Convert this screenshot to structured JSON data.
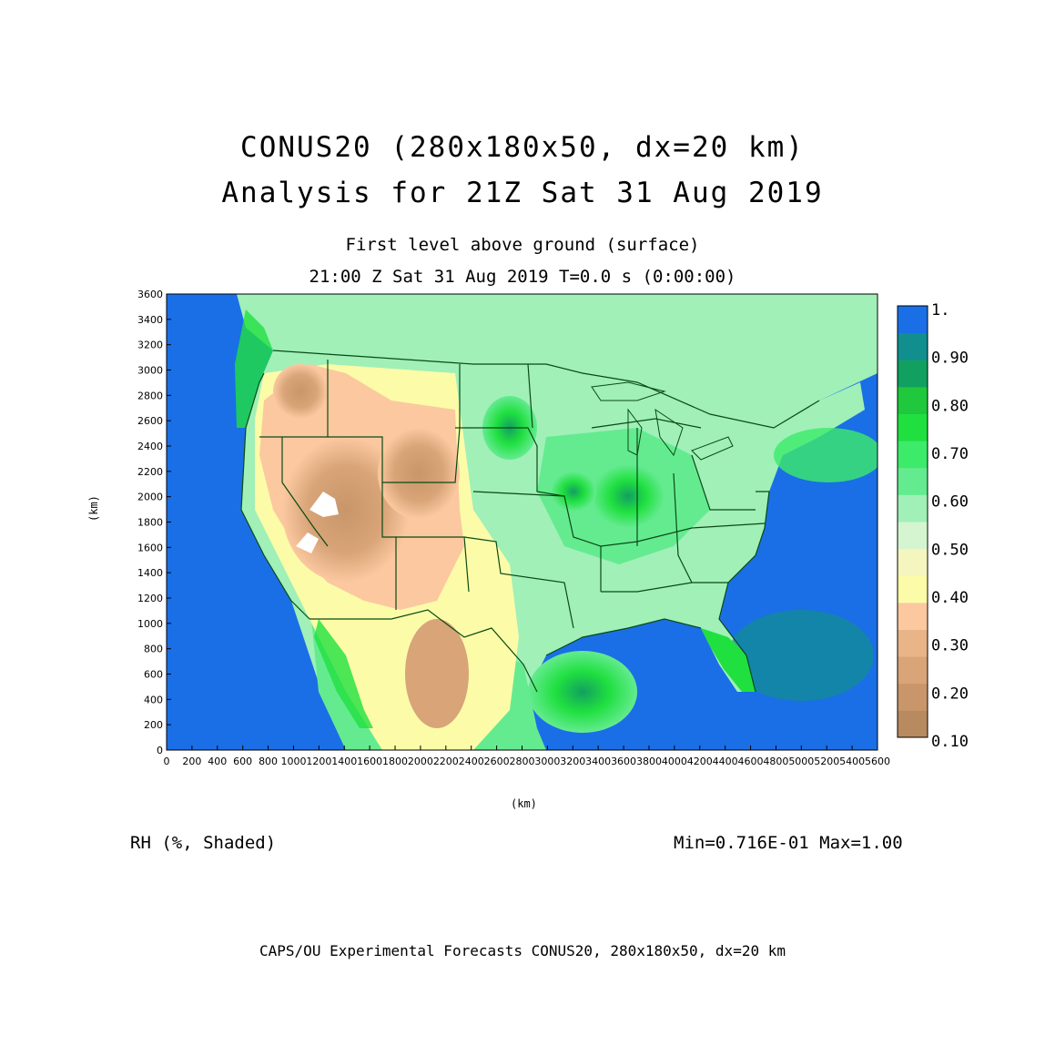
{
  "titles": {
    "main_1": "CONUS20 (280x180x50, dx=20 km)",
    "main_2": "Analysis for 21Z Sat 31 Aug 2019",
    "sub_1": "First level above ground (surface)",
    "sub_2": "21:00 Z Sat 31 Aug 2019   T=0.0 s (0:00:00)"
  },
  "axes": {
    "x_unit": "(km)",
    "y_unit": "(km)",
    "x_range": [
      0,
      5600
    ],
    "y_range": [
      0,
      3600
    ],
    "x_ticks": [
      "0",
      "200",
      "400",
      "600",
      "800",
      "1000",
      "1200",
      "1400",
      "1600",
      "1800",
      "2000",
      "2200",
      "2400",
      "2600",
      "2800",
      "3000",
      "3200",
      "3400",
      "3600",
      "3800",
      "4000",
      "4200",
      "4400",
      "4600",
      "4800",
      "5000",
      "5200",
      "5400",
      "5600"
    ],
    "y_ticks": [
      "0",
      "200",
      "400",
      "600",
      "800",
      "1000",
      "1200",
      "1400",
      "1600",
      "1800",
      "2000",
      "2200",
      "2400",
      "2600",
      "2800",
      "3000",
      "3200",
      "3400",
      "3600"
    ]
  },
  "variable_label": "RH (%, Shaded)",
  "min_max": "Min=0.716E-01 Max=1.00",
  "footer": "CAPS/OU Experimental Forecasts  CONUS20, 280x180x50, dx=20 km",
  "legend": {
    "labels": [
      "1.",
      "0.90",
      "0.80",
      "0.70",
      "0.60",
      "0.50",
      "0.40",
      "0.30",
      "0.20",
      "0.10"
    ],
    "colors": [
      "#1a6fe6",
      "#118f8f",
      "#12a060",
      "#1fc83c",
      "#20e040",
      "#3ceb6a",
      "#64eb90",
      "#a0f0b8",
      "#d4f5d0",
      "#f5f5c0",
      "#fcfca8",
      "#fcc8a0",
      "#e8b488",
      "#d8a478",
      "#c8966a",
      "#b88a60"
    ]
  },
  "colors": {
    "water": "#1a6fe6",
    "dry": "#c8966a",
    "moist": "#3ceb6a",
    "border": "#0a4a14"
  }
}
